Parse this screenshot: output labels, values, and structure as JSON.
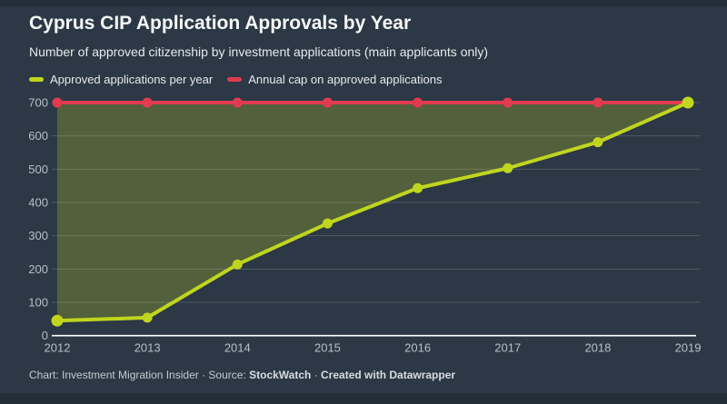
{
  "header": {
    "title": "Cyprus CIP Application Approvals by Year",
    "subtitle": "Number of approved citizenship by investment applications (main applicants only)"
  },
  "legend": {
    "items": [
      {
        "label": "Approved applications per year",
        "color": "#c0d51e"
      },
      {
        "label": "Annual cap on approved applications",
        "color": "#e23a4e"
      }
    ]
  },
  "footer": {
    "prefix": "Chart: Investment Migration Insider · Source: ",
    "source_name": "StockWatch",
    "mid": " · ",
    "created_with": "Created with Datawrapper"
  },
  "colors": {
    "background": "#2c3845",
    "page_edge": "#242e39",
    "grid_line": "rgba(255,255,255,0.17)",
    "axis_baseline": "#ffffff",
    "axis_label": "#b7bfc7",
    "approved_line": "#c0d51e",
    "cap_line": "#e23a4e",
    "area_fill": "rgba(192,213,30,0.26)"
  },
  "chart_data": {
    "type": "line",
    "title": "Cyprus CIP Application Approvals by Year",
    "subtitle": "Number of approved citizenship by investment applications (main applicants only)",
    "x": [
      2012,
      2013,
      2014,
      2015,
      2016,
      2017,
      2018,
      2019
    ],
    "series": [
      {
        "name": "Approved applications per year",
        "color": "#c0d51e",
        "values": [
          45,
          54,
          214,
          337,
          443,
          503,
          581,
          700
        ]
      },
      {
        "name": "Annual cap on approved applications",
        "color": "#e23a4e",
        "values": [
          700,
          700,
          700,
          700,
          700,
          700,
          700,
          700
        ]
      }
    ],
    "ylim": [
      0,
      700
    ],
    "y_ticks": [
      0,
      100,
      200,
      300,
      400,
      500,
      600,
      700
    ],
    "grid": "horizontal",
    "legend_position": "top",
    "area_fill_between_series": true,
    "annual_cap_value": 700
  }
}
